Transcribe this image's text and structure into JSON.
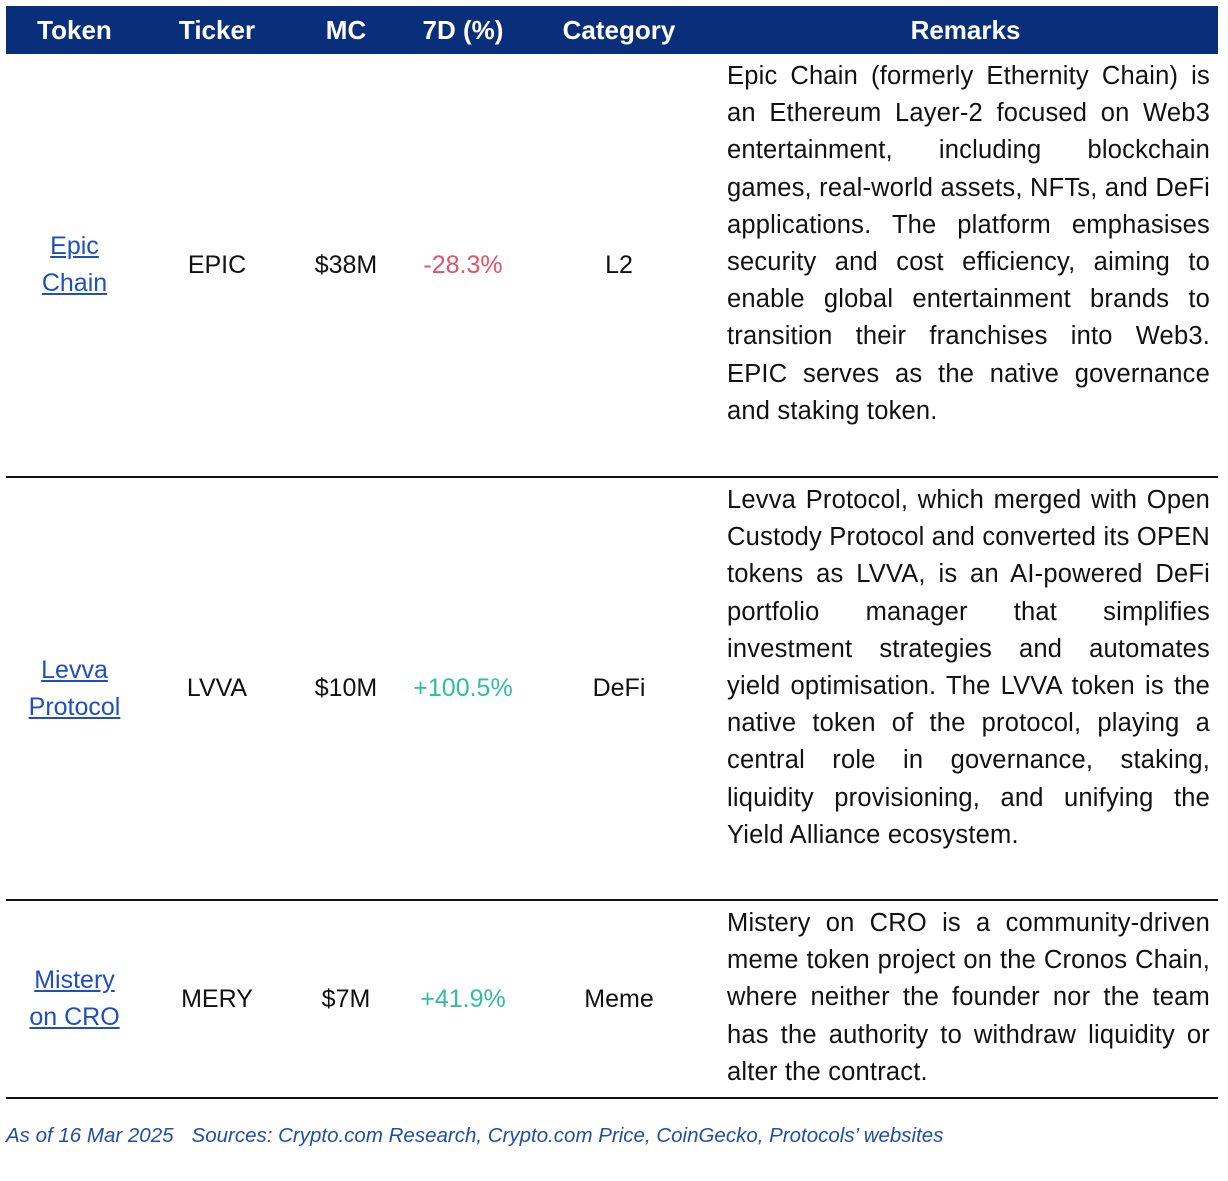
{
  "table": {
    "headers": [
      "Token",
      "Ticker",
      "MC",
      "7D (%)",
      "Category",
      "Remarks"
    ],
    "rows": [
      {
        "token": "Epic Chain",
        "ticker": "EPIC",
        "mc": "$38M",
        "change": "-28.3%",
        "change_color": "#e0526a",
        "category": "L2",
        "remarks": "Epic Chain (formerly Ethernity Chain) is an Ethereum Layer-2 focused on Web3 entertainment, including blockchain games, real-world assets, NFTs, and DeFi applications. The platform emphasises security and cost efficiency, aiming to enable global entertainment brands to transition their franchises into Web3. EPIC serves as the native governance and staking token."
      },
      {
        "token": "Levva Protocol",
        "ticker": "LVVA",
        "mc": "$10M",
        "change": "+100.5%",
        "change_color": "#2fbf9a",
        "category": "DeFi",
        "remarks": "Levva Protocol, which merged with Open Custody Protocol and converted its OPEN tokens as LVVA,  is an AI-powered DeFi portfolio manager that simplifies investment strategies and automates yield optimisation. The LVVA token is the native token of the protocol, playing a central role in governance, staking, liquidity provisioning, and unifying the Yield Alliance ecosystem."
      },
      {
        "token": "Mistery on CRO",
        "ticker": "MERY",
        "mc": "$7M",
        "change": "+41.9%",
        "change_color": "#2fbf9a",
        "category": "Meme",
        "remarks": "Mistery on CRO is a community-driven meme token project on the Cronos Chain, where neither the founder nor the team has the authority to withdraw liquidity or alter the contract."
      }
    ]
  },
  "footnote": {
    "date": "As of 16 Mar 2025",
    "sources": "Sources: Crypto.com Research, Crypto.com Price, CoinGecko, Protocols’ websites"
  },
  "colors": {
    "header_bg": "#0a2f7a",
    "link": "#1f4fbf",
    "footnote": "#1f4fa8"
  }
}
